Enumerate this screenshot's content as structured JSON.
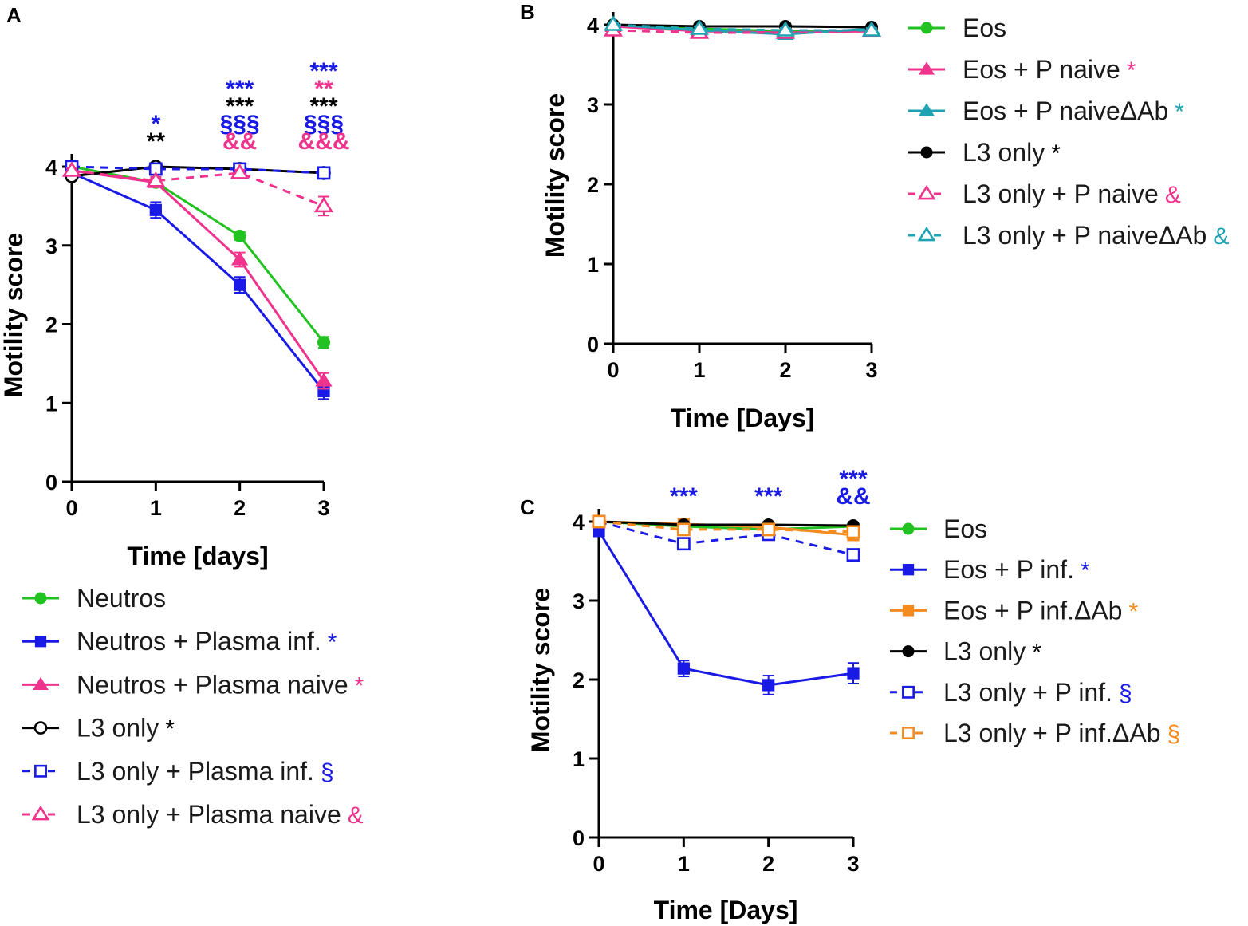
{
  "chart_data": [
    {
      "panel": "A",
      "type": "line",
      "xlabel": "Time [days]",
      "ylabel": "Motility score",
      "xlim": [
        0,
        3
      ],
      "ylim": [
        0,
        4
      ],
      "x_ticks": [
        "0",
        "1",
        "2",
        "3"
      ],
      "y_ticks": [
        "0",
        "1",
        "2",
        "3",
        "4"
      ],
      "series": [
        {
          "name": "Neutros",
          "color": "#22c222",
          "marker": "filled-circle",
          "dashed": false,
          "values": [
            4.0,
            3.8,
            3.12,
            1.77
          ],
          "errors": [
            0.03,
            0.04,
            0.05,
            0.07
          ],
          "legend_mark": "",
          "legend_mark_color": "#22c222"
        },
        {
          "name": "Neutros + Plasma inf.",
          "color": "#1a1ae6",
          "marker": "filled-square",
          "dashed": false,
          "values": [
            3.92,
            3.45,
            2.5,
            1.15
          ],
          "errors": [
            0.05,
            0.1,
            0.1,
            0.1
          ],
          "legend_mark": "*",
          "legend_mark_color": "#1a1ae6"
        },
        {
          "name": "Neutros + Plasma naive",
          "color": "#f0338c",
          "marker": "filled-triangle",
          "dashed": false,
          "values": [
            3.95,
            3.8,
            2.82,
            1.28
          ],
          "errors": [
            0.04,
            0.05,
            0.09,
            0.1
          ],
          "legend_mark": "*",
          "legend_mark_color": "#f0338c"
        },
        {
          "name": "L3 only",
          "color": "#000000",
          "marker": "open-circle",
          "dashed": false,
          "values": [
            3.88,
            4.0,
            3.97,
            3.92
          ],
          "errors": [
            0.05,
            0.02,
            0.03,
            0.03
          ],
          "legend_mark": "*",
          "legend_mark_color": "#000000"
        },
        {
          "name": "L3 only + Plasma inf.",
          "color": "#1a1ae6",
          "marker": "open-square",
          "dashed": true,
          "values": [
            4.0,
            3.97,
            3.97,
            3.92
          ],
          "errors": [
            0.02,
            0.03,
            0.03,
            0.03
          ],
          "legend_mark": "§",
          "legend_mark_color": "#1a1ae6"
        },
        {
          "name": "L3 only + Plasma naive",
          "color": "#f0338c",
          "marker": "open-triangle",
          "dashed": true,
          "values": [
            3.95,
            3.82,
            3.92,
            3.5
          ],
          "errors": [
            0.03,
            0.05,
            0.04,
            0.12
          ],
          "legend_mark": "&",
          "legend_mark_color": "#f0338c"
        }
      ],
      "annotations": [
        {
          "x": 1,
          "lines": [
            {
              "text": "*",
              "color": "#1a1ae6"
            },
            {
              "text": "**",
              "color": "#000000"
            }
          ]
        },
        {
          "x": 2,
          "lines": [
            {
              "text": "***",
              "color": "#1a1ae6"
            },
            {
              "text": "***",
              "color": "#000000"
            },
            {
              "text": "§§§",
              "color": "#1a1ae6"
            },
            {
              "text": "&&",
              "color": "#f0338c"
            }
          ]
        },
        {
          "x": 3,
          "lines": [
            {
              "text": "***",
              "color": "#1a1ae6"
            },
            {
              "text": "**",
              "color": "#f0338c"
            },
            {
              "text": "***",
              "color": "#000000"
            },
            {
              "text": "§§§",
              "color": "#1a1ae6"
            },
            {
              "text": "&&&",
              "color": "#f0338c"
            }
          ]
        }
      ]
    },
    {
      "panel": "B",
      "type": "line",
      "xlabel": "Time [Days]",
      "ylabel": "Motility score",
      "xlim": [
        0,
        3
      ],
      "ylim": [
        0,
        4
      ],
      "x_ticks": [
        "0",
        "1",
        "2",
        "3"
      ],
      "y_ticks": [
        "0",
        "1",
        "2",
        "3",
        "4"
      ],
      "series": [
        {
          "name": "Eos",
          "color": "#22c222",
          "marker": "filled-circle",
          "dashed": false,
          "values": [
            4.0,
            3.95,
            3.92,
            3.93
          ],
          "errors": [
            0.02,
            0.03,
            0.03,
            0.03
          ],
          "legend_mark": "",
          "legend_mark_color": "#22c222"
        },
        {
          "name": "Eos + P naive",
          "color": "#f0338c",
          "marker": "filled-triangle",
          "dashed": false,
          "values": [
            3.98,
            3.92,
            3.9,
            3.92
          ],
          "errors": [
            0.03,
            0.06,
            0.05,
            0.04
          ],
          "legend_mark": "*",
          "legend_mark_color": "#f0338c"
        },
        {
          "name": "Eos + P naiveΔAb",
          "color": "#1fa3b3",
          "marker": "filled-triangle",
          "dashed": false,
          "values": [
            4.0,
            3.93,
            3.88,
            3.95
          ],
          "errors": [
            0.02,
            0.04,
            0.04,
            0.03
          ],
          "legend_mark": "*",
          "legend_mark_color": "#1fa3b3"
        },
        {
          "name": "L3 only",
          "color": "#000000",
          "marker": "filled-circle",
          "dashed": false,
          "values": [
            4.0,
            3.98,
            3.98,
            3.97
          ],
          "errors": [
            0.02,
            0.02,
            0.02,
            0.02
          ],
          "legend_mark": "*",
          "legend_mark_color": "#000000"
        },
        {
          "name": "L3 only + P naive",
          "color": "#f0338c",
          "marker": "open-triangle",
          "dashed": true,
          "values": [
            3.93,
            3.9,
            3.9,
            3.92
          ],
          "errors": [
            0.03,
            0.04,
            0.04,
            0.03
          ],
          "legend_mark": "&",
          "legend_mark_color": "#f0338c"
        },
        {
          "name": "L3 only + P naiveΔAb",
          "color": "#1fa3b3",
          "marker": "open-triangle",
          "dashed": true,
          "values": [
            4.0,
            3.95,
            3.93,
            3.93
          ],
          "errors": [
            0.02,
            0.03,
            0.03,
            0.03
          ],
          "legend_mark": "&",
          "legend_mark_color": "#1fa3b3"
        }
      ],
      "annotations": []
    },
    {
      "panel": "C",
      "type": "line",
      "xlabel": "Time [Days]",
      "ylabel": "Motility score",
      "xlim": [
        0,
        3
      ],
      "ylim": [
        0,
        4
      ],
      "x_ticks": [
        "0",
        "1",
        "2",
        "3"
      ],
      "y_ticks": [
        "0",
        "1",
        "2",
        "3",
        "4"
      ],
      "series": [
        {
          "name": "Eos",
          "color": "#22c222",
          "marker": "filled-circle",
          "dashed": false,
          "values": [
            4.0,
            3.94,
            3.9,
            3.94
          ],
          "errors": [
            0.02,
            0.03,
            0.03,
            0.03
          ],
          "legend_mark": "",
          "legend_mark_color": "#22c222"
        },
        {
          "name": "Eos + P inf.",
          "color": "#1a1ae6",
          "marker": "filled-square",
          "dashed": false,
          "values": [
            3.88,
            2.14,
            1.93,
            2.08
          ],
          "errors": [
            0.04,
            0.1,
            0.12,
            0.13
          ],
          "legend_mark": "*",
          "legend_mark_color": "#1a1ae6"
        },
        {
          "name": "Eos + P inf.ΔAb",
          "color": "#f58a1f",
          "marker": "filled-square",
          "dashed": false,
          "values": [
            4.0,
            3.97,
            3.93,
            3.83
          ],
          "errors": [
            0.02,
            0.03,
            0.03,
            0.04
          ],
          "legend_mark": "*",
          "legend_mark_color": "#f58a1f"
        },
        {
          "name": "L3 only",
          "color": "#000000",
          "marker": "filled-circle",
          "dashed": false,
          "values": [
            4.0,
            3.96,
            3.96,
            3.95
          ],
          "errors": [
            0.02,
            0.02,
            0.02,
            0.02
          ],
          "legend_mark": "*",
          "legend_mark_color": "#000000"
        },
        {
          "name": "L3 only + P inf.",
          "color": "#1a1ae6",
          "marker": "open-square",
          "dashed": true,
          "values": [
            4.0,
            3.72,
            3.84,
            3.58
          ],
          "errors": [
            0.02,
            0.05,
            0.04,
            0.05
          ],
          "legend_mark": "§",
          "legend_mark_color": "#1a1ae6"
        },
        {
          "name": "L3 only + P inf.ΔAb",
          "color": "#f58a1f",
          "marker": "open-square",
          "dashed": true,
          "values": [
            4.0,
            3.9,
            3.9,
            3.87
          ],
          "errors": [
            0.02,
            0.03,
            0.03,
            0.03
          ],
          "legend_mark": "§",
          "legend_mark_color": "#f58a1f"
        }
      ],
      "annotations": [
        {
          "x": 1,
          "lines": [
            {
              "text": "***",
              "color": "#1a1ae6"
            }
          ]
        },
        {
          "x": 2,
          "lines": [
            {
              "text": "***",
              "color": "#1a1ae6"
            }
          ]
        },
        {
          "x": 3,
          "lines": [
            {
              "text": "***",
              "color": "#1a1ae6"
            },
            {
              "text": "&&",
              "color": "#1a1ae6"
            }
          ]
        }
      ]
    }
  ]
}
